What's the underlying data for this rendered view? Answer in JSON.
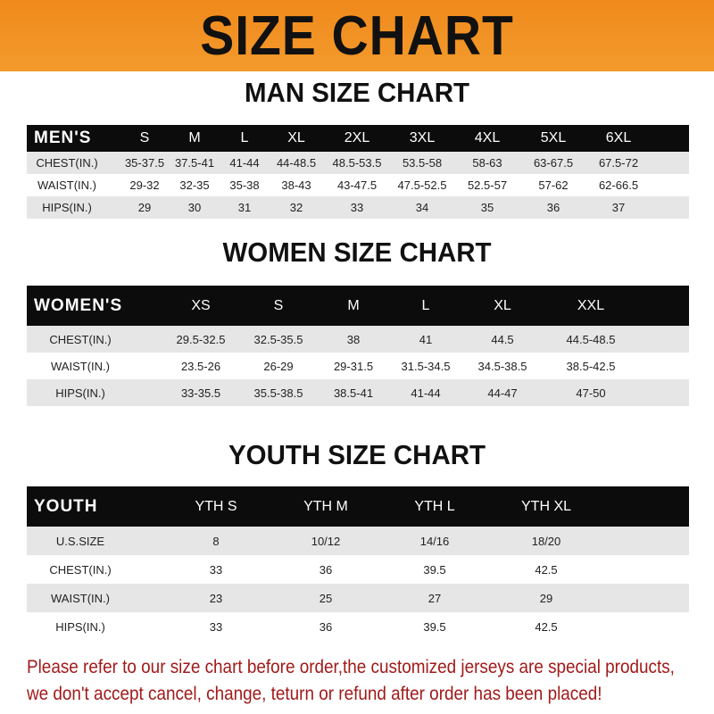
{
  "banner": {
    "title": "SIZE CHART"
  },
  "men": {
    "title": "MAN SIZE CHART",
    "header": [
      "MEN'S",
      "S",
      "M",
      "L",
      "XL",
      "2XL",
      "3XL",
      "4XL",
      "5XL",
      "6XL"
    ],
    "rows": [
      [
        "CHEST(IN.)",
        "35-37.5",
        "37.5-41",
        "41-44",
        "44-48.5",
        "48.5-53.5",
        "53.5-58",
        "58-63",
        "63-67.5",
        "67.5-72"
      ],
      [
        "WAIST(IN.)",
        "29-32",
        "32-35",
        "35-38",
        "38-43",
        "43-47.5",
        "47.5-52.5",
        "52.5-57",
        "57-62",
        "62-66.5"
      ],
      [
        "HIPS(IN.)",
        "29",
        "30",
        "31",
        "32",
        "33",
        "34",
        "35",
        "36",
        "37"
      ]
    ]
  },
  "women": {
    "title": "WOMEN SIZE CHART",
    "header": [
      "WOMEN'S",
      "XS",
      "S",
      "M",
      "L",
      "XL",
      "XXL"
    ],
    "rows": [
      [
        "CHEST(IN.)",
        "29.5-32.5",
        "32.5-35.5",
        "38",
        "41",
        "44.5",
        "44.5-48.5"
      ],
      [
        "WAIST(IN.)",
        "23.5-26",
        "26-29",
        "29-31.5",
        "31.5-34.5",
        "34.5-38.5",
        "38.5-42.5"
      ],
      [
        "HIPS(IN.)",
        "33-35.5",
        "35.5-38.5",
        "38.5-41",
        "41-44",
        "44-47",
        "47-50"
      ]
    ]
  },
  "youth": {
    "title": "YOUTH SIZE CHART",
    "header": [
      "YOUTH",
      "YTH S",
      "YTH M",
      "YTH L",
      "YTH XL"
    ],
    "rows": [
      [
        "U.S.SIZE",
        "8",
        "10/12",
        "14/16",
        "18/20"
      ],
      [
        "CHEST(IN.)",
        "33",
        "36",
        "39.5",
        "42.5"
      ],
      [
        "WAIST(IN.)",
        "23",
        "25",
        "27",
        "29"
      ],
      [
        "HIPS(IN.)",
        "33",
        "36",
        "39.5",
        "42.5"
      ]
    ]
  },
  "footer": {
    "line1": "Please refer to our size chart before order,the customized jerseys are special products,",
    "line2": "we don't accept cancel, change, teturn or refund after order has been placed!"
  },
  "colors": {
    "banner": "#f08a1c",
    "header_row": "#0c0c0c",
    "stripe": "#e6e6e6",
    "notice_text": "#a11a1a"
  }
}
